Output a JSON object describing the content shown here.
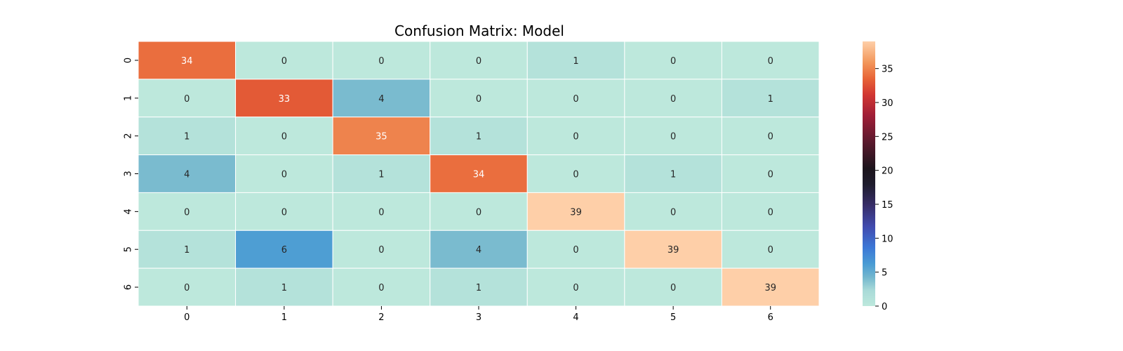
{
  "chart_data": {
    "type": "heatmap",
    "title": "Confusion Matrix: Model",
    "xlabel": "",
    "ylabel": "",
    "x_ticks": [
      "0",
      "1",
      "2",
      "3",
      "4",
      "5",
      "6"
    ],
    "y_ticks": [
      "0",
      "1",
      "2",
      "3",
      "4",
      "5",
      "6"
    ],
    "values": [
      [
        34,
        0,
        0,
        0,
        1,
        0,
        0
      ],
      [
        0,
        33,
        4,
        0,
        0,
        0,
        1
      ],
      [
        1,
        0,
        35,
        1,
        0,
        0,
        0
      ],
      [
        4,
        0,
        1,
        34,
        0,
        1,
        0
      ],
      [
        0,
        0,
        0,
        0,
        39,
        0,
        0
      ],
      [
        1,
        6,
        0,
        4,
        0,
        39,
        0
      ],
      [
        0,
        1,
        0,
        1,
        0,
        0,
        39
      ]
    ],
    "colormap": "icefire",
    "vmin": 0,
    "vmax": 39,
    "colorbar_ticks": [
      "0",
      "5",
      "10",
      "15",
      "20",
      "25",
      "30",
      "35"
    ],
    "grid": true,
    "grid_color": "#ffffff"
  }
}
